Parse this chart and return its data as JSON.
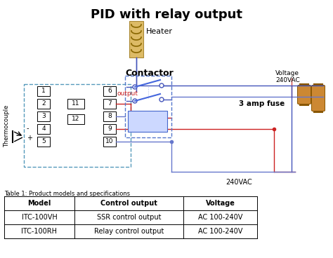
{
  "title": "PID with relay output",
  "title_fontsize": 13,
  "title_fontweight": "bold",
  "bg_color": "#ffffff",
  "fig_width": 4.74,
  "fig_height": 3.68,
  "dpi": 100,
  "table_title": "Table 1: Product models and specifications",
  "table_headers": [
    "Model",
    "Control output",
    "Voltage"
  ],
  "table_rows": [
    [
      "ITC-100VH",
      "SSR control output",
      "AC 100-240V"
    ],
    [
      "ITC-100RH",
      "Relay control output",
      "AC 100-240V"
    ]
  ],
  "wire_blue": "#4455bb",
  "wire_blue2": "#6677cc",
  "wire_red": "#cc2222",
  "pin_labels_left": [
    "1",
    "2",
    "3",
    "4",
    "5"
  ],
  "pin_labels_right": [
    "6",
    "7",
    "8",
    "9",
    "10"
  ],
  "pin_labels_mid": [
    "11",
    "12"
  ],
  "contactor_label": "Contactor",
  "heater_label": "Heater",
  "contactor_bold": "Contactor",
  "voltage_label": "Voltage\n240VAC",
  "voltage_240": "240VAC",
  "fuse_label": "3 amp fuse",
  "thermocouple_label": "Thermocouple",
  "output_label": "output",
  "heater_color": "#ddbb66",
  "heater_edge": "#aa8833",
  "coil_color": "#886600",
  "fuse_color": "#cc8833",
  "fuse_edge": "#885500"
}
